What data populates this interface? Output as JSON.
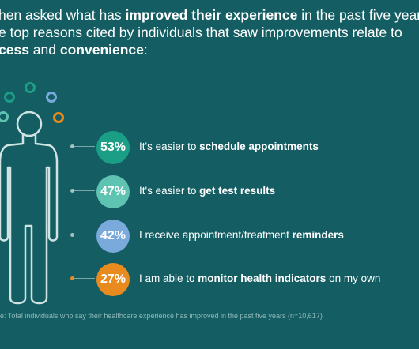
{
  "headline": {
    "line1_pre": "hen asked what has ",
    "line1_bold": "improved their experience",
    "line1_post": " in the past five years",
    "line2": "e top reasons cited by individuals that saw improvements relate to",
    "line3_bold1": "cess",
    "line3_mid": " and ",
    "line3_bold2": "convenience",
    "line3_end": ":"
  },
  "chart_data": {
    "type": "bar",
    "unit": "%",
    "categories": [
      "It's easier to schedule appointments",
      "It's easier to get test results",
      "I receive appointment/treatment reminders",
      "I am able to monitor health indicators on my own"
    ],
    "values": [
      53,
      47,
      42,
      27
    ],
    "value_labels": [
      "53%",
      "47%",
      "42%",
      "27%"
    ],
    "colors": [
      "#1b9e86",
      "#5ec3b0",
      "#7aa9dc",
      "#e98a1e"
    ]
  },
  "items": [
    {
      "pct": "53%",
      "pre": "It's easier to ",
      "bold": "schedule appointments",
      "post": ""
    },
    {
      "pct": "47%",
      "pre": "It's easier to ",
      "bold": "get test results",
      "post": ""
    },
    {
      "pct": "42%",
      "pre": "I receive appointment/treatment ",
      "bold": "reminders",
      "post": ""
    },
    {
      "pct": "27%",
      "pre": "I am able to ",
      "bold": "monitor health indicators",
      "post": " on my own"
    }
  ],
  "footnote": "e: Total individuals who say their healthcare experience has improved in the past five years (n=10,617)",
  "icons": [
    "person-outline-icon",
    "thought-bubble-icon"
  ]
}
